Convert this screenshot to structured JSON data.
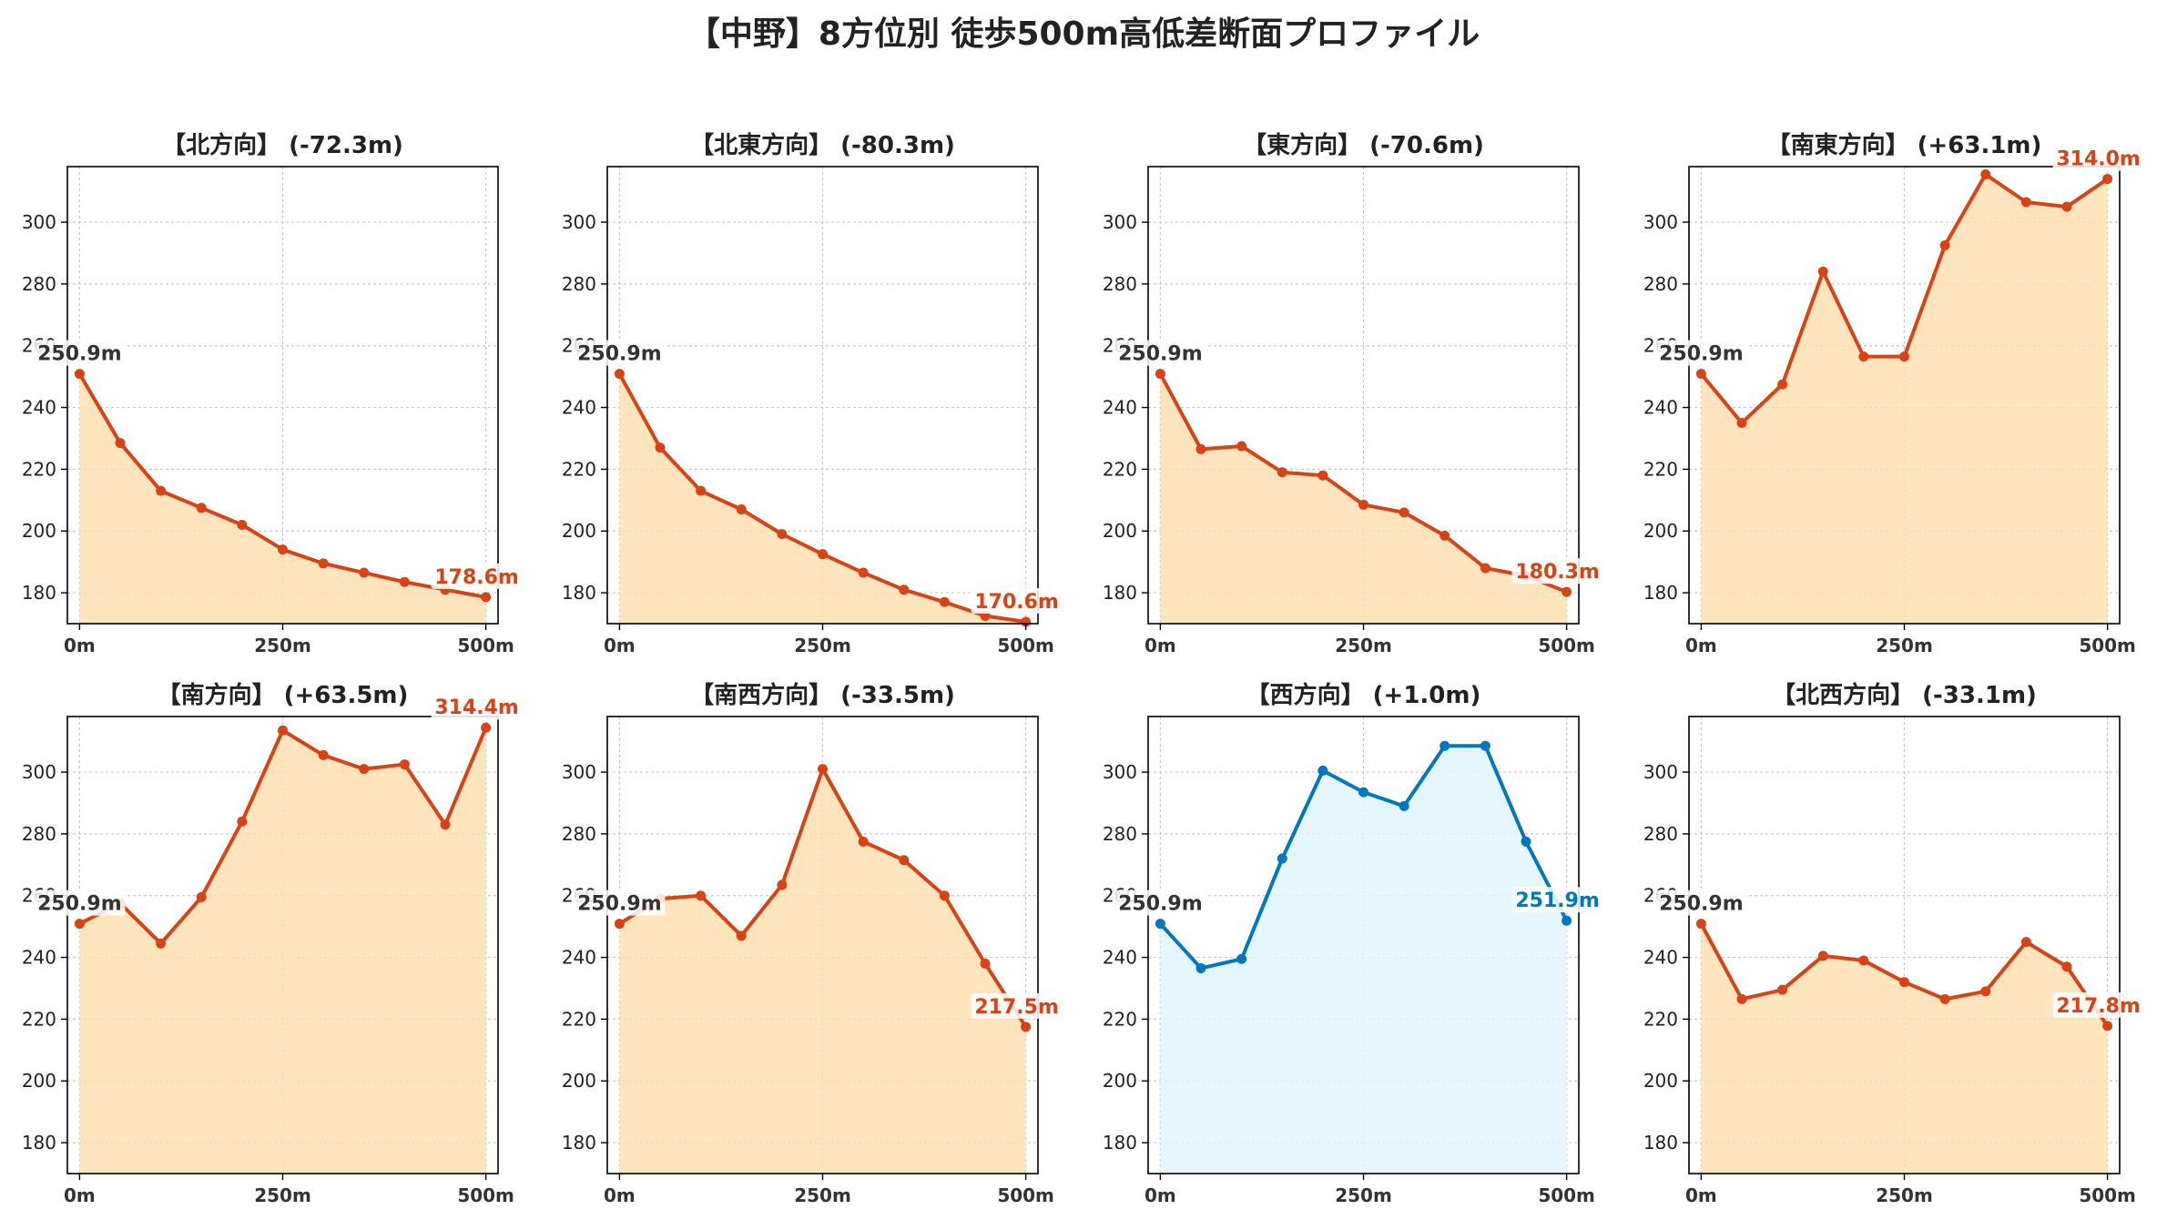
{
  "title": "【中野】8方位別 徒歩500m高低差断面プロファイル",
  "colors": {
    "descent_line": "#d84315",
    "descent_fill": "#ffe0b2",
    "ascent_line": "#0277bd",
    "ascent_fill": "#e1f5fe",
    "start_label": "#333333"
  },
  "chart_data": [
    {
      "type": "area",
      "title": "【北方向】 (-72.3m)",
      "color": "descent",
      "x": [
        0,
        50,
        100,
        150,
        200,
        250,
        300,
        350,
        400,
        450,
        500
      ],
      "y": [
        250.9,
        228.5,
        213.0,
        207.5,
        202.0,
        194.0,
        189.5,
        186.5,
        183.5,
        181.0,
        178.6
      ],
      "xticks": [
        "0m",
        "250m",
        "500m"
      ],
      "yticks": [
        180,
        200,
        220,
        240,
        260,
        280,
        300
      ],
      "xlim": [
        -15,
        515
      ],
      "ylim": [
        170,
        318
      ],
      "grid": true,
      "start_label": "250.9m",
      "end_label": "178.6m"
    },
    {
      "type": "area",
      "title": "【北東方向】 (-80.3m)",
      "color": "descent",
      "x": [
        0,
        50,
        100,
        150,
        200,
        250,
        300,
        350,
        400,
        450,
        500
      ],
      "y": [
        250.9,
        227.0,
        213.0,
        207.0,
        199.0,
        192.5,
        186.5,
        181.0,
        177.0,
        172.5,
        170.6
      ],
      "xticks": [
        "0m",
        "250m",
        "500m"
      ],
      "yticks": [
        180,
        200,
        220,
        240,
        260,
        280,
        300
      ],
      "xlim": [
        -15,
        515
      ],
      "ylim": [
        170,
        318
      ],
      "grid": true,
      "start_label": "250.9m",
      "end_label": "170.6m"
    },
    {
      "type": "area",
      "title": "【東方向】 (-70.6m)",
      "color": "descent",
      "x": [
        0,
        50,
        100,
        150,
        200,
        250,
        300,
        350,
        400,
        450,
        500
      ],
      "y": [
        250.9,
        226.5,
        227.5,
        219.0,
        218.0,
        208.5,
        206.0,
        198.5,
        188.0,
        185.5,
        180.3
      ],
      "xticks": [
        "0m",
        "250m",
        "500m"
      ],
      "yticks": [
        180,
        200,
        220,
        240,
        260,
        280,
        300
      ],
      "xlim": [
        -15,
        515
      ],
      "ylim": [
        170,
        318
      ],
      "grid": true,
      "start_label": "250.9m",
      "end_label": "180.3m"
    },
    {
      "type": "area",
      "title": "【南東方向】 (+63.1m)",
      "color": "descent",
      "x": [
        0,
        50,
        100,
        150,
        200,
        250,
        300,
        350,
        400,
        450,
        500
      ],
      "y": [
        250.9,
        235.0,
        247.5,
        284.0,
        256.5,
        256.5,
        292.5,
        315.5,
        306.5,
        305.0,
        314.0
      ],
      "xticks": [
        "0m",
        "250m",
        "500m"
      ],
      "yticks": [
        180,
        200,
        220,
        240,
        260,
        280,
        300
      ],
      "xlim": [
        -15,
        515
      ],
      "ylim": [
        170,
        318
      ],
      "grid": true,
      "start_label": "250.9m",
      "end_label": "314.0m"
    },
    {
      "type": "area",
      "title": "【南方向】 (+63.5m)",
      "color": "descent",
      "x": [
        0,
        50,
        100,
        150,
        200,
        250,
        300,
        350,
        400,
        450,
        500
      ],
      "y": [
        250.9,
        257.5,
        244.5,
        259.5,
        284.0,
        313.5,
        305.5,
        301.0,
        302.5,
        283.0,
        314.4
      ],
      "xticks": [
        "0m",
        "250m",
        "500m"
      ],
      "yticks": [
        180,
        200,
        220,
        240,
        260,
        280,
        300
      ],
      "xlim": [
        -15,
        515
      ],
      "ylim": [
        170,
        318
      ],
      "grid": true,
      "start_label": "250.9m",
      "end_label": "314.4m"
    },
    {
      "type": "area",
      "title": "【南西方向】 (-33.5m)",
      "color": "descent",
      "x": [
        0,
        50,
        100,
        150,
        200,
        250,
        300,
        350,
        400,
        450,
        500
      ],
      "y": [
        250.9,
        259.0,
        260.0,
        247.0,
        263.5,
        301.0,
        277.5,
        271.5,
        260.0,
        238.0,
        217.5
      ],
      "xticks": [
        "0m",
        "250m",
        "500m"
      ],
      "yticks": [
        180,
        200,
        220,
        240,
        260,
        280,
        300
      ],
      "xlim": [
        -15,
        515
      ],
      "ylim": [
        170,
        318
      ],
      "grid": true,
      "start_label": "250.9m",
      "end_label": "217.5m"
    },
    {
      "type": "area",
      "title": "【西方向】 (+1.0m)",
      "color": "ascent",
      "x": [
        0,
        50,
        100,
        150,
        200,
        250,
        300,
        350,
        400,
        450,
        500
      ],
      "y": [
        250.9,
        236.5,
        239.5,
        272.0,
        300.5,
        293.5,
        289.0,
        308.5,
        308.5,
        277.5,
        251.9
      ],
      "xticks": [
        "0m",
        "250m",
        "500m"
      ],
      "yticks": [
        180,
        200,
        220,
        240,
        260,
        280,
        300
      ],
      "xlim": [
        -15,
        515
      ],
      "ylim": [
        170,
        318
      ],
      "grid": true,
      "start_label": "250.9m",
      "end_label": "251.9m"
    },
    {
      "type": "area",
      "title": "【北西方向】 (-33.1m)",
      "color": "descent",
      "x": [
        0,
        50,
        100,
        150,
        200,
        250,
        300,
        350,
        400,
        450,
        500
      ],
      "y": [
        250.9,
        226.5,
        229.5,
        240.5,
        239.0,
        232.0,
        226.5,
        229.0,
        245.0,
        237.0,
        217.8
      ],
      "xticks": [
        "0m",
        "250m",
        "500m"
      ],
      "yticks": [
        180,
        200,
        220,
        240,
        260,
        280,
        300
      ],
      "xlim": [
        -15,
        515
      ],
      "ylim": [
        170,
        318
      ],
      "grid": true,
      "start_label": "250.9m",
      "end_label": "217.8m"
    }
  ]
}
